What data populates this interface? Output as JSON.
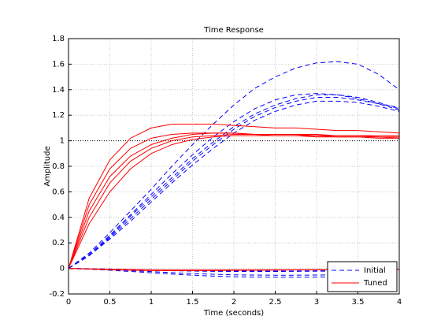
{
  "chart_data": {
    "type": "line",
    "title": "Time Response",
    "x_label": "Time (seconds)",
    "y_label": "Amplitude",
    "x": [
      0,
      0.25,
      0.5,
      0.75,
      1,
      1.25,
      1.5,
      1.75,
      2,
      2.25,
      2.5,
      2.75,
      3,
      3.25,
      3.5,
      3.75,
      4
    ],
    "series": [
      {
        "name": "Initial",
        "color": "#0000ff",
        "dashed": true,
        "lines": [
          [
            0,
            0.12,
            0.28,
            0.45,
            0.62,
            0.8,
            0.97,
            1.13,
            1.28,
            1.41,
            1.5,
            1.57,
            1.61,
            1.62,
            1.6,
            1.52,
            1.4
          ],
          [
            0,
            0.1,
            0.25,
            0.41,
            0.56,
            0.71,
            0.86,
            0.99,
            1.11,
            1.21,
            1.28,
            1.33,
            1.36,
            1.36,
            1.34,
            1.3,
            1.25
          ],
          [
            0,
            0.1,
            0.24,
            0.39,
            0.54,
            0.69,
            0.84,
            0.97,
            1.09,
            1.19,
            1.26,
            1.31,
            1.34,
            1.34,
            1.32,
            1.29,
            1.24
          ],
          [
            0,
            0.1,
            0.23,
            0.37,
            0.52,
            0.67,
            0.81,
            0.94,
            1.06,
            1.16,
            1.23,
            1.28,
            1.31,
            1.31,
            1.3,
            1.27,
            1.23
          ],
          [
            0,
            0.11,
            0.26,
            0.42,
            0.58,
            0.74,
            0.89,
            1.03,
            1.15,
            1.25,
            1.32,
            1.36,
            1.37,
            1.36,
            1.33,
            1.29,
            1.26
          ],
          [
            0,
            -0.004,
            -0.01,
            -0.017,
            -0.025,
            -0.033,
            -0.04,
            -0.046,
            -0.05,
            -0.052,
            -0.053,
            -0.053,
            -0.052,
            -0.05,
            -0.048,
            -0.046,
            -0.044
          ],
          [
            0,
            -0.006,
            -0.014,
            -0.024,
            -0.034,
            -0.044,
            -0.053,
            -0.06,
            -0.065,
            -0.068,
            -0.069,
            -0.069,
            -0.068,
            -0.066,
            -0.064,
            -0.062,
            -0.06
          ],
          [
            0,
            -0.003,
            -0.007,
            -0.011,
            -0.015,
            -0.018,
            -0.021,
            -0.023,
            -0.024,
            -0.024,
            -0.024,
            -0.023,
            -0.022,
            -0.021,
            -0.02,
            -0.019,
            -0.018
          ],
          [
            0,
            -0.002,
            -0.005,
            -0.008,
            -0.011,
            -0.014,
            -0.016,
            -0.018,
            -0.019,
            -0.02,
            -0.02,
            -0.02,
            -0.019,
            -0.019,
            -0.018,
            -0.017,
            -0.016
          ]
        ]
      },
      {
        "name": "Tuned",
        "color": "#ff0000",
        "dashed": false,
        "lines": [
          [
            0,
            0.45,
            0.72,
            0.88,
            0.97,
            1.02,
            1.05,
            1.06,
            1.06,
            1.05,
            1.05,
            1.05,
            1.04,
            1.04,
            1.04,
            1.03,
            1.03
          ],
          [
            0,
            0.55,
            0.85,
            1.02,
            1.1,
            1.13,
            1.13,
            1.13,
            1.12,
            1.11,
            1.1,
            1.1,
            1.09,
            1.08,
            1.08,
            1.07,
            1.06
          ],
          [
            0,
            0.35,
            0.6,
            0.78,
            0.9,
            0.97,
            1.01,
            1.03,
            1.04,
            1.04,
            1.04,
            1.04,
            1.03,
            1.03,
            1.03,
            1.02,
            1.02
          ],
          [
            0,
            0.4,
            0.67,
            0.84,
            0.94,
            1.0,
            1.03,
            1.04,
            1.05,
            1.05,
            1.04,
            1.04,
            1.04,
            1.03,
            1.03,
            1.03,
            1.02
          ],
          [
            0,
            0.5,
            0.78,
            0.94,
            1.02,
            1.05,
            1.06,
            1.06,
            1.06,
            1.05,
            1.05,
            1.05,
            1.05,
            1.04,
            1.04,
            1.04,
            1.04
          ],
          [
            0,
            -0.005,
            -0.01,
            -0.014,
            -0.016,
            -0.017,
            -0.017,
            -0.016,
            -0.015,
            -0.014,
            -0.013,
            -0.012,
            -0.011,
            -0.01,
            -0.009,
            -0.008,
            -0.008
          ],
          [
            0,
            -0.003,
            -0.006,
            -0.009,
            -0.011,
            -0.012,
            -0.012,
            -0.012,
            -0.011,
            -0.011,
            -0.01,
            -0.01,
            -0.009,
            -0.009,
            -0.008,
            -0.008,
            -0.007
          ]
        ]
      }
    ],
    "reference_line": 1,
    "xlim": [
      0,
      4
    ],
    "xticks": [
      0,
      0.5,
      1,
      1.5,
      2,
      2.5,
      3,
      3.5,
      4
    ],
    "ylim": [
      -0.2,
      1.8
    ],
    "yticks": [
      -0.2,
      0,
      0.2,
      0.4,
      0.6,
      0.8,
      1,
      1.2,
      1.4,
      1.6,
      1.8
    ],
    "grid": true,
    "legend": "lower right"
  }
}
